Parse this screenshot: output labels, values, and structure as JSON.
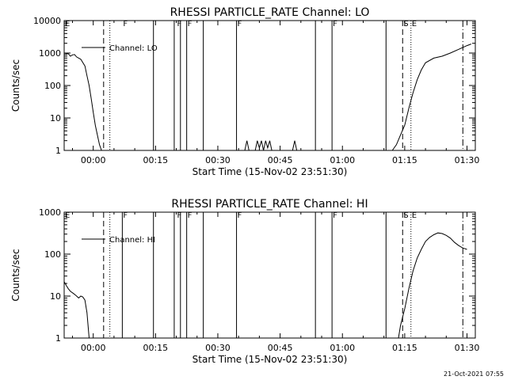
{
  "footer": "21-Oct-2021 07:55",
  "chart_data": [
    {
      "type": "line",
      "title": "RHESSI PARTICLE_RATE Channel: LO",
      "xlabel": "Start Time (15-Nov-02 23:51:30)",
      "ylabel": "Counts/sec",
      "yscale": "log",
      "xlim": [
        -7,
        92
      ],
      "ylim": [
        1,
        10000
      ],
      "x_ticks": [
        0,
        15,
        30,
        45,
        60,
        75,
        90
      ],
      "x_tick_labels": [
        "00:00",
        "00:15",
        "00:30",
        "00:45",
        "01:00",
        "01:15",
        "01:30"
      ],
      "y_ticks": [
        1,
        10,
        100,
        1000,
        10000
      ],
      "y_tick_labels": [
        "1",
        "10",
        "100",
        "1000",
        "10000"
      ],
      "grid": false,
      "legend": {
        "placement": "top-left"
      },
      "series": [
        {
          "name": "Channel: LO",
          "points": [
            [
              -7,
              1000
            ],
            [
              -6,
              950
            ],
            [
              -5.5,
              800
            ],
            [
              -5,
              880
            ],
            [
              -4.5,
              900
            ],
            [
              -4,
              760
            ],
            [
              -3,
              640
            ],
            [
              -2,
              400
            ],
            [
              -1.5,
              200
            ],
            [
              -1,
              100
            ],
            [
              -0.5,
              40
            ],
            [
              0,
              15
            ],
            [
              0.5,
              6
            ],
            [
              1,
              3
            ],
            [
              1.5,
              1.5
            ],
            [
              2,
              1
            ]
          ]
        },
        {
          "points": [
            [
              36.5,
              1
            ],
            [
              37,
              2
            ],
            [
              37.5,
              1
            ]
          ]
        },
        {
          "points": [
            [
              39,
              1
            ],
            [
              39.5,
              2
            ],
            [
              40,
              1.2
            ],
            [
              40.5,
              2
            ],
            [
              41,
              1
            ],
            [
              41.5,
              2
            ],
            [
              42,
              1.2
            ],
            [
              42.5,
              2
            ],
            [
              43,
              1
            ]
          ]
        },
        {
          "points": [
            [
              48,
              1
            ],
            [
              48.5,
              2
            ],
            [
              49,
              1
            ]
          ]
        },
        {
          "points": [
            [
              72,
              1
            ],
            [
              73,
              1.5
            ],
            [
              74,
              3
            ],
            [
              75,
              6
            ],
            [
              76,
              20
            ],
            [
              77,
              60
            ],
            [
              78,
              150
            ],
            [
              79,
              300
            ],
            [
              80,
              500
            ],
            [
              82,
              700
            ],
            [
              84,
              800
            ],
            [
              86,
              1000
            ],
            [
              88,
              1300
            ],
            [
              90,
              1700
            ],
            [
              91,
              1900
            ]
          ]
        }
      ],
      "vlines": [
        {
          "x": 2.5,
          "style": "dashed"
        },
        {
          "x": 4,
          "style": "dotted"
        },
        {
          "x": 14.5,
          "style": "solid"
        },
        {
          "x": 19.5,
          "style": "solid"
        },
        {
          "x": 21,
          "style": "solid"
        },
        {
          "x": 22.5,
          "style": "solid"
        },
        {
          "x": 26.5,
          "style": "solid"
        },
        {
          "x": 34.5,
          "style": "solid"
        },
        {
          "x": 53.5,
          "style": "solid"
        },
        {
          "x": 57.5,
          "style": "solid"
        },
        {
          "x": 70.5,
          "style": "solid"
        },
        {
          "x": 74.5,
          "style": "dashed"
        },
        {
          "x": 76.5,
          "style": "dotted"
        },
        {
          "x": 89,
          "style": "dash-dot"
        }
      ],
      "flags": [
        {
          "x": -7,
          "label": "E"
        },
        {
          "x": 7,
          "label": "F"
        },
        {
          "x": 20,
          "label": "F"
        },
        {
          "x": 22.5,
          "label": "F"
        },
        {
          "x": 34.5,
          "label": "F"
        },
        {
          "x": 57.5,
          "label": "F"
        },
        {
          "x": 74.5,
          "label": "S"
        },
        {
          "x": 76.5,
          "label": "E"
        }
      ]
    },
    {
      "type": "line",
      "title": "RHESSI PARTICLE_RATE Channel: HI",
      "xlabel": "Start Time (15-Nov-02 23:51:30)",
      "ylabel": "Counts/sec",
      "yscale": "log",
      "xlim": [
        -7,
        92
      ],
      "ylim": [
        1,
        1000
      ],
      "x_ticks": [
        0,
        15,
        30,
        45,
        60,
        75,
        90
      ],
      "x_tick_labels": [
        "00:00",
        "00:15",
        "00:30",
        "00:45",
        "01:00",
        "01:15",
        "01:30"
      ],
      "y_ticks": [
        1,
        10,
        100,
        1000
      ],
      "y_tick_labels": [
        "1",
        "10",
        "100",
        "1000"
      ],
      "grid": false,
      "legend": {
        "placement": "top-left"
      },
      "series": [
        {
          "name": "Channel: HI",
          "points": [
            [
              -7,
              22
            ],
            [
              -6.5,
              18
            ],
            [
              -6,
              15
            ],
            [
              -5.5,
              13
            ],
            [
              -5,
              12
            ],
            [
              -4.5,
              11
            ],
            [
              -4,
              10
            ],
            [
              -3.5,
              9
            ],
            [
              -3,
              10
            ],
            [
              -2.5,
              9.5
            ],
            [
              -2,
              8
            ],
            [
              -1.5,
              4
            ],
            [
              -1,
              1
            ]
          ]
        },
        {
          "points": [
            [
              73.5,
              1
            ],
            [
              74,
              2
            ],
            [
              75,
              5
            ],
            [
              76,
              15
            ],
            [
              77,
              40
            ],
            [
              78,
              80
            ],
            [
              79,
              130
            ],
            [
              80,
              200
            ],
            [
              81,
              250
            ],
            [
              82,
              290
            ],
            [
              83,
              320
            ],
            [
              84,
              310
            ],
            [
              85,
              280
            ],
            [
              86,
              240
            ],
            [
              87,
              190
            ],
            [
              88,
              160
            ],
            [
              89,
              140
            ],
            [
              90,
              130
            ]
          ]
        }
      ],
      "vlines": [
        {
          "x": 2.5,
          "style": "dashed"
        },
        {
          "x": 4,
          "style": "dotted"
        },
        {
          "x": 7,
          "style": "solid"
        },
        {
          "x": 14.5,
          "style": "solid"
        },
        {
          "x": 19.5,
          "style": "solid"
        },
        {
          "x": 21,
          "style": "solid"
        },
        {
          "x": 22.5,
          "style": "solid"
        },
        {
          "x": 26.5,
          "style": "solid"
        },
        {
          "x": 34.5,
          "style": "solid"
        },
        {
          "x": 53.5,
          "style": "solid"
        },
        {
          "x": 57.5,
          "style": "solid"
        },
        {
          "x": 70.5,
          "style": "solid"
        },
        {
          "x": 74.5,
          "style": "dashed"
        },
        {
          "x": 76.5,
          "style": "dotted"
        },
        {
          "x": 89,
          "style": "dash-dot"
        }
      ],
      "flags": [
        {
          "x": -7,
          "label": "E"
        },
        {
          "x": 7,
          "label": "F"
        },
        {
          "x": 20,
          "label": "F"
        },
        {
          "x": 22.5,
          "label": "F"
        },
        {
          "x": 34.5,
          "label": "F"
        },
        {
          "x": 57.5,
          "label": "F"
        },
        {
          "x": 74.5,
          "label": "S"
        },
        {
          "x": 76.5,
          "label": "E"
        }
      ]
    }
  ]
}
